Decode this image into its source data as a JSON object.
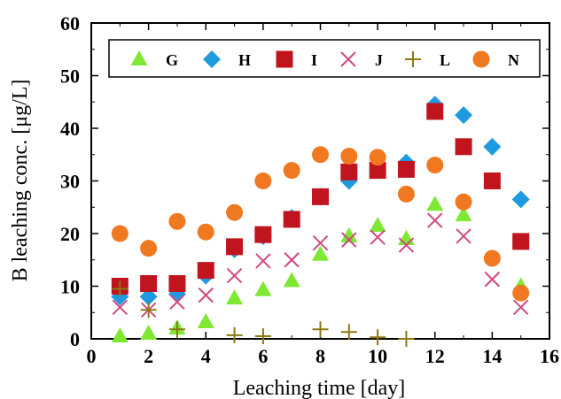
{
  "chart_data": {
    "type": "scatter",
    "title": "",
    "xlabel": "Leaching time [day]",
    "ylabel": "B leaching conc. [μg/L]",
    "xlim": [
      0,
      16
    ],
    "ylim": [
      0,
      60
    ],
    "xticks": [
      "0",
      "2",
      "4",
      "6",
      "8",
      "10",
      "12",
      "14",
      "16"
    ],
    "yticks": [
      "0",
      "10",
      "20",
      "30",
      "40",
      "50",
      "60"
    ],
    "grid": false,
    "legend_position": "top",
    "series": [
      {
        "name": "G",
        "marker": "triangle",
        "color": "#7ee832",
        "points": [
          [
            1,
            0.5
          ],
          [
            2,
            1.0
          ],
          [
            3,
            2.0
          ],
          [
            4,
            3.2
          ],
          [
            5,
            7.7
          ],
          [
            6,
            9.3
          ],
          [
            7,
            11.0
          ],
          [
            8,
            16.0
          ],
          [
            9,
            19.5
          ],
          [
            10,
            21.5
          ],
          [
            11,
            19.0
          ],
          [
            12,
            25.5
          ],
          [
            13,
            23.5
          ],
          [
            15,
            10.0
          ]
        ]
      },
      {
        "name": "H",
        "marker": "diamond",
        "color": "#1e9be0",
        "points": [
          [
            1,
            8.0
          ],
          [
            2,
            8.0
          ],
          [
            3,
            8.5
          ],
          [
            4,
            12.0
          ],
          [
            5,
            17.0
          ],
          [
            6,
            19.5
          ],
          [
            7,
            23.0
          ],
          [
            8,
            27.0
          ],
          [
            9,
            30.0
          ],
          [
            10,
            32.0
          ],
          [
            11,
            33.5
          ],
          [
            12,
            44.5
          ],
          [
            13,
            42.5
          ],
          [
            14,
            36.5
          ],
          [
            15,
            26.5
          ]
        ]
      },
      {
        "name": "I",
        "marker": "square",
        "color": "#c0141e",
        "points": [
          [
            1,
            10.0
          ],
          [
            2,
            10.5
          ],
          [
            3,
            10.5
          ],
          [
            4,
            13.0
          ],
          [
            5,
            17.5
          ],
          [
            6,
            19.8
          ],
          [
            7,
            22.7
          ],
          [
            8,
            27.0
          ],
          [
            9,
            31.7
          ],
          [
            10,
            32.0
          ],
          [
            11,
            32.2
          ],
          [
            12,
            43.2
          ],
          [
            13,
            36.5
          ],
          [
            14,
            30.0
          ],
          [
            15,
            18.5
          ]
        ]
      },
      {
        "name": "J",
        "marker": "x",
        "color": "#d04a80",
        "points": [
          [
            1,
            6.0
          ],
          [
            2,
            5.5
          ],
          [
            3,
            7.0
          ],
          [
            4,
            8.3
          ],
          [
            5,
            12.0
          ],
          [
            6,
            14.8
          ],
          [
            7,
            15.0
          ],
          [
            8,
            18.2
          ],
          [
            9,
            18.8
          ],
          [
            10,
            19.3
          ],
          [
            11,
            17.8
          ],
          [
            12,
            22.5
          ],
          [
            13,
            19.5
          ],
          [
            14,
            11.3
          ],
          [
            15,
            6.0
          ]
        ]
      },
      {
        "name": "L",
        "marker": "plus",
        "color": "#8a7a10",
        "points": [
          [
            1,
            9.5
          ],
          [
            2,
            5.5
          ],
          [
            3,
            1.8
          ],
          [
            5,
            0.7
          ],
          [
            6,
            0.5
          ],
          [
            8,
            1.8
          ],
          [
            9,
            1.3
          ],
          [
            10,
            0.3
          ],
          [
            11,
            0.0
          ]
        ]
      },
      {
        "name": "N",
        "marker": "circle",
        "color": "#f07820",
        "points": [
          [
            1,
            20.0
          ],
          [
            2,
            17.2
          ],
          [
            3,
            22.3
          ],
          [
            4,
            20.3
          ],
          [
            5,
            24.0
          ],
          [
            6,
            30.0
          ],
          [
            7,
            32.0
          ],
          [
            8,
            35.0
          ],
          [
            9,
            34.7
          ],
          [
            10,
            34.5
          ],
          [
            11,
            27.5
          ],
          [
            12,
            33.0
          ],
          [
            13,
            26.0
          ],
          [
            14,
            15.3
          ],
          [
            15,
            8.7
          ]
        ]
      }
    ]
  }
}
